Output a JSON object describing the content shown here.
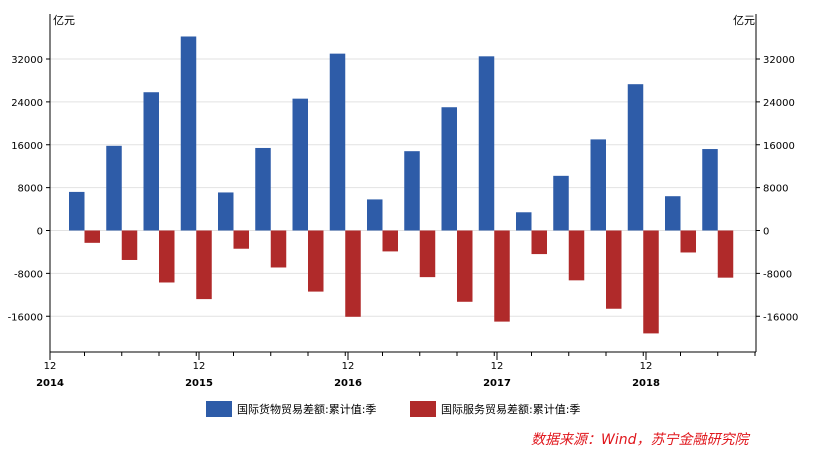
{
  "chart_data": {
    "type": "bar",
    "unit_label_left": "亿元",
    "unit_label_right": "亿元",
    "ylim": [
      -30000,
      40000
    ],
    "y_ticks": [
      32000,
      24000,
      16000,
      8000,
      0,
      -8000,
      -16000
    ],
    "y_tick_labels": [
      "32000",
      "24000",
      "16000",
      "8000",
      "0",
      "-8000",
      "-16000"
    ],
    "x_tick_labels": [
      "12",
      "12",
      "12",
      "12",
      "12"
    ],
    "year_labels": [
      "2014",
      "2015",
      "2016",
      "2017",
      "2018"
    ],
    "periods": [
      "2014Q4",
      "2015Q1",
      "2015Q2",
      "2015Q3",
      "2015Q4",
      "2016Q1",
      "2016Q2",
      "2016Q3",
      "2016Q4",
      "2017Q1",
      "2017Q2",
      "2017Q3",
      "2017Q4",
      "2018Q1",
      "2018Q2",
      "2018Q3",
      "2018Q4",
      "2019Q1",
      "2019Q2"
    ],
    "series": [
      {
        "name": "国际货物贸易差额:累计值:季",
        "color": "#2e5ca8",
        "values": [
          7200,
          15800,
          25800,
          36200,
          7100,
          15400,
          24600,
          33000,
          5800,
          14800,
          23000,
          32500,
          3400,
          10200,
          17000,
          27300,
          6400,
          15200,
          null
        ]
      },
      {
        "name": "国际服务贸易差额:累计值:季",
        "color": "#b02a2a",
        "values": [
          -2300,
          -5500,
          -9700,
          -12800,
          -3400,
          -6900,
          -11400,
          -16100,
          -3900,
          -8700,
          -13300,
          -17000,
          -4400,
          -9300,
          -14600,
          -19200,
          -4100,
          -8800,
          null
        ]
      }
    ],
    "legend_position": "bottom-center",
    "grid": true
  },
  "source_text": "数据来源：Wind，苏宁金融研究院"
}
